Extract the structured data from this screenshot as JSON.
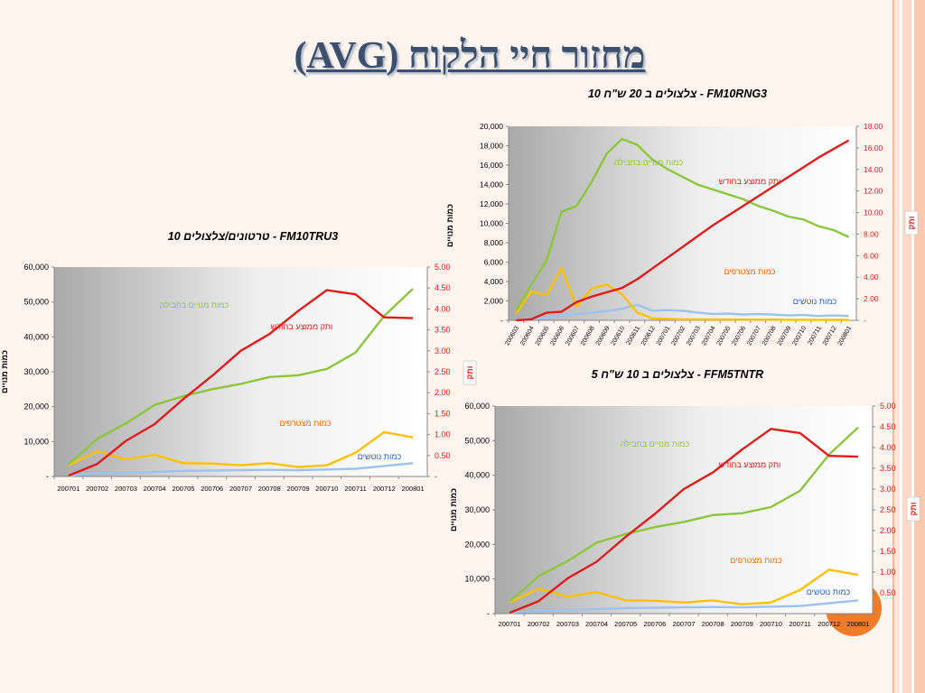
{
  "slide": {
    "title": "מחזור חיי הלקוח (AVG)",
    "colors": {
      "subscribers": "#8cc63f",
      "revenue": "#e01b1b",
      "joiners": "#ffc000",
      "churners": "#9cc3ec",
      "title": "#3c4f6b"
    }
  },
  "chart_data": [
    {
      "id": "fm10tru3",
      "type": "line",
      "title": "FM10TRU3 - טרטונים/צלצולים 10",
      "ylabel_left": "כמות מנויים",
      "ylabel_right": "ותק",
      "categories": [
        "200701",
        "200702",
        "200703",
        "200704",
        "200705",
        "200706",
        "200707",
        "200708",
        "200709",
        "200710",
        "200711",
        "200712",
        "200801"
      ],
      "ylim_left": [
        0,
        60000
      ],
      "yticks_left": [
        "-",
        "10,000",
        "20,000",
        "30,000",
        "40,000",
        "50,000",
        "60,000"
      ],
      "ylim_right": [
        0,
        5
      ],
      "yticks_right": [
        "-",
        "0.50",
        "1.00",
        "1.50",
        "2.00",
        "2.50",
        "3.00",
        "3.50",
        "4.00",
        "4.50",
        "5.00"
      ],
      "series": [
        {
          "name": "כמות מנויים בחבילה",
          "axis": "left",
          "color": "#8cc63f",
          "values": [
            3500,
            10800,
            15200,
            20500,
            23000,
            25000,
            26500,
            28500,
            29000,
            30800,
            35500,
            46000,
            53800
          ]
        },
        {
          "name": "כמות מצטרפים",
          "axis": "left",
          "color": "#ffc000",
          "values": [
            3200,
            7200,
            4900,
            6200,
            3800,
            3700,
            3200,
            3800,
            2700,
            3200,
            6800,
            12700,
            11200
          ]
        },
        {
          "name": "כמות נוטשים",
          "axis": "left",
          "color": "#9cc3ec",
          "values": [
            200,
            900,
            1000,
            1300,
            1600,
            1700,
            1800,
            1900,
            1800,
            2000,
            2200,
            3000,
            3800
          ]
        },
        {
          "name": "ותק ממוצע בחודש",
          "axis": "right",
          "color": "#e01b1b",
          "values": [
            0.02,
            0.3,
            0.85,
            1.25,
            1.85,
            2.4,
            3.0,
            3.4,
            3.95,
            4.45,
            4.35,
            3.8,
            3.78
          ]
        }
      ]
    },
    {
      "id": "fm10rng3",
      "type": "line",
      "title": "FM10RNG3 - צלצולים ב 20 ש\"ח 10",
      "ylabel_left": "כמות מנויים",
      "ylabel_right": "ותק",
      "categories": [
        "200603",
        "200604",
        "200605",
        "200606",
        "200607",
        "200608",
        "200609",
        "200610",
        "200611",
        "200612",
        "200701",
        "200702",
        "200703",
        "200704",
        "200705",
        "200706",
        "200707",
        "200708",
        "200709",
        "200710",
        "200711",
        "200712",
        "200801"
      ],
      "ylim_left": [
        0,
        20000
      ],
      "yticks_left": [
        "-",
        "2,000",
        "4,000",
        "6,000",
        "8,000",
        "10,000",
        "12,000",
        "14,000",
        "16,000",
        "18,000",
        "20,000"
      ],
      "ylim_right": [
        0,
        18
      ],
      "yticks_right": [
        "-",
        "2.00",
        "4.00",
        "6.00",
        "8.00",
        "10.00",
        "12.00",
        "14.00",
        "16.00",
        "18.00"
      ],
      "series": [
        {
          "name": "כמות מנויים בחבילה",
          "axis": "left",
          "color": "#8cc63f",
          "values": [
            1000,
            3700,
            6100,
            11200,
            11800,
            14300,
            17200,
            18700,
            18100,
            16600,
            15600,
            14800,
            14000,
            13500,
            13000,
            12500,
            11800,
            11300,
            10700,
            10400,
            9700,
            9300,
            8600
          ]
        },
        {
          "name": "כמות מצטרפים",
          "axis": "left",
          "color": "#ffc000",
          "values": [
            700,
            3000,
            2600,
            5400,
            1400,
            3300,
            3700,
            2700,
            800,
            200,
            150,
            100,
            100,
            80,
            80,
            70,
            70,
            70,
            60,
            60,
            60,
            50,
            50
          ]
        },
        {
          "name": "כמות נוטשים",
          "axis": "left",
          "color": "#9cc3ec",
          "values": [
            50,
            150,
            250,
            500,
            650,
            800,
            950,
            1200,
            1600,
            1000,
            1050,
            1000,
            800,
            650,
            700,
            600,
            650,
            600,
            500,
            550,
            450,
            500,
            450
          ]
        },
        {
          "name": "ותק ממוצע בחודש",
          "axis": "right",
          "color": "#e01b1b",
          "values": [
            0.0,
            0.1,
            0.7,
            0.8,
            1.7,
            2.2,
            2.6,
            3.0,
            3.8,
            4.8,
            5.8,
            6.8,
            7.8,
            8.8,
            9.7,
            10.6,
            11.5,
            12.4,
            13.3,
            14.2,
            15.1,
            15.9,
            16.7
          ]
        }
      ]
    },
    {
      "id": "ffm5tntr",
      "type": "line",
      "title": "FFM5TNTR - צלצולים ב 10 ש\"ח 5",
      "ylabel_left": "כמות מנויים",
      "ylabel_right": "ותק",
      "categories": [
        "200701",
        "200702",
        "200703",
        "200704",
        "200705",
        "200706",
        "200707",
        "200708",
        "200709",
        "200710",
        "200711",
        "200712",
        "200801"
      ],
      "ylim_left": [
        0,
        60000
      ],
      "yticks_left": [
        "-",
        "10,000",
        "20,000",
        "30,000",
        "40,000",
        "50,000",
        "60,000"
      ],
      "ylim_right": [
        0,
        5
      ],
      "yticks_right": [
        "",
        "0.50",
        "1.00",
        "1.50",
        "2.00",
        "2.50",
        "3.00",
        "3.50",
        "4.00",
        "4.50",
        "5.00"
      ],
      "series": [
        {
          "name": "כמות מנויים בחבילה",
          "axis": "left",
          "color": "#8cc63f",
          "values": [
            3500,
            10800,
            15200,
            20500,
            23000,
            25000,
            26500,
            28500,
            29000,
            30800,
            35500,
            46000,
            53800
          ]
        },
        {
          "name": "כמות מצטרפים",
          "axis": "left",
          "color": "#ffc000",
          "values": [
            3200,
            7200,
            4900,
            6200,
            3800,
            3700,
            3200,
            3800,
            2700,
            3200,
            6800,
            12700,
            11200
          ]
        },
        {
          "name": "כמות נוטשים",
          "axis": "left",
          "color": "#9cc3ec",
          "values": [
            200,
            900,
            1000,
            1300,
            1600,
            1700,
            1800,
            1900,
            1800,
            2000,
            2200,
            3000,
            3800
          ]
        },
        {
          "name": "ותק ממוצע בחודש",
          "axis": "right",
          "color": "#e01b1b",
          "values": [
            0.02,
            0.3,
            0.85,
            1.25,
            1.85,
            2.4,
            3.0,
            3.4,
            3.95,
            4.45,
            4.35,
            3.8,
            3.78
          ]
        }
      ]
    }
  ]
}
